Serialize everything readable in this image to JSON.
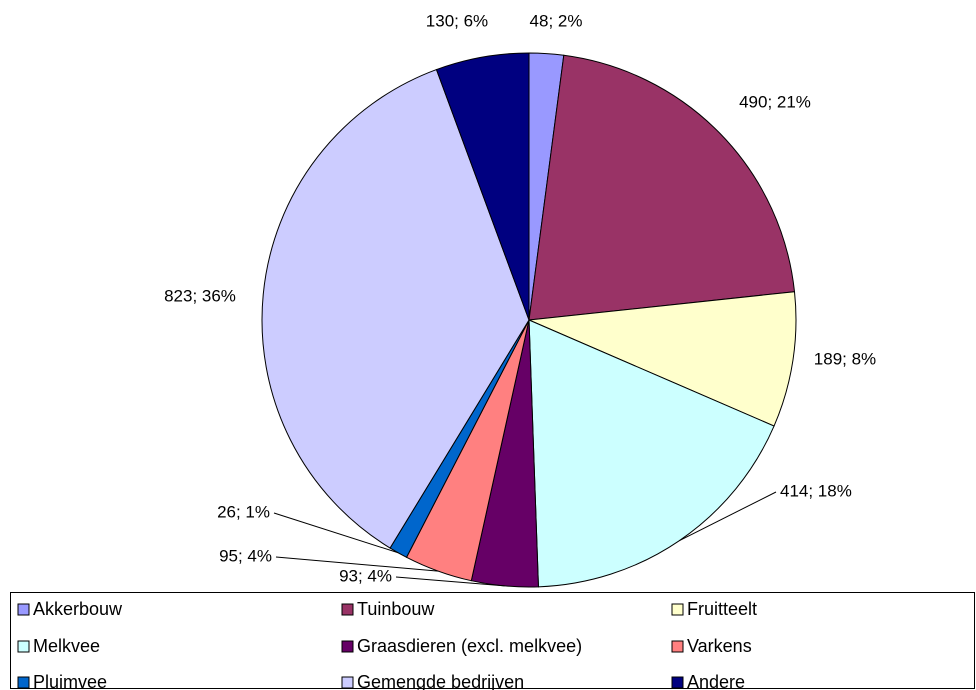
{
  "chart_data": {
    "type": "pie",
    "categories": [
      "Akkerbouw",
      "Tuinbouw",
      "Fruitteelt",
      "Melkvee",
      "Graasdieren (excl. melkvee)",
      "Varkens",
      "Pluimvee",
      "Gemengde bedrijven",
      "Andere"
    ],
    "values": [
      48,
      490,
      189,
      414,
      93,
      95,
      26,
      823,
      130
    ],
    "value_labels": [
      "48; 2%",
      "490; 21%",
      "189; 8%",
      "414; 18%",
      "93; 4%",
      "95; 4%",
      "26; 1%",
      "823; 36%",
      "130; 6%"
    ],
    "colors": [
      "#9999ff",
      "#993366",
      "#ffffcc",
      "#ccffff",
      "#660066",
      "#ff8080",
      "#0066cc",
      "#ccccff",
      "#000080"
    ],
    "legend": "bottom"
  }
}
